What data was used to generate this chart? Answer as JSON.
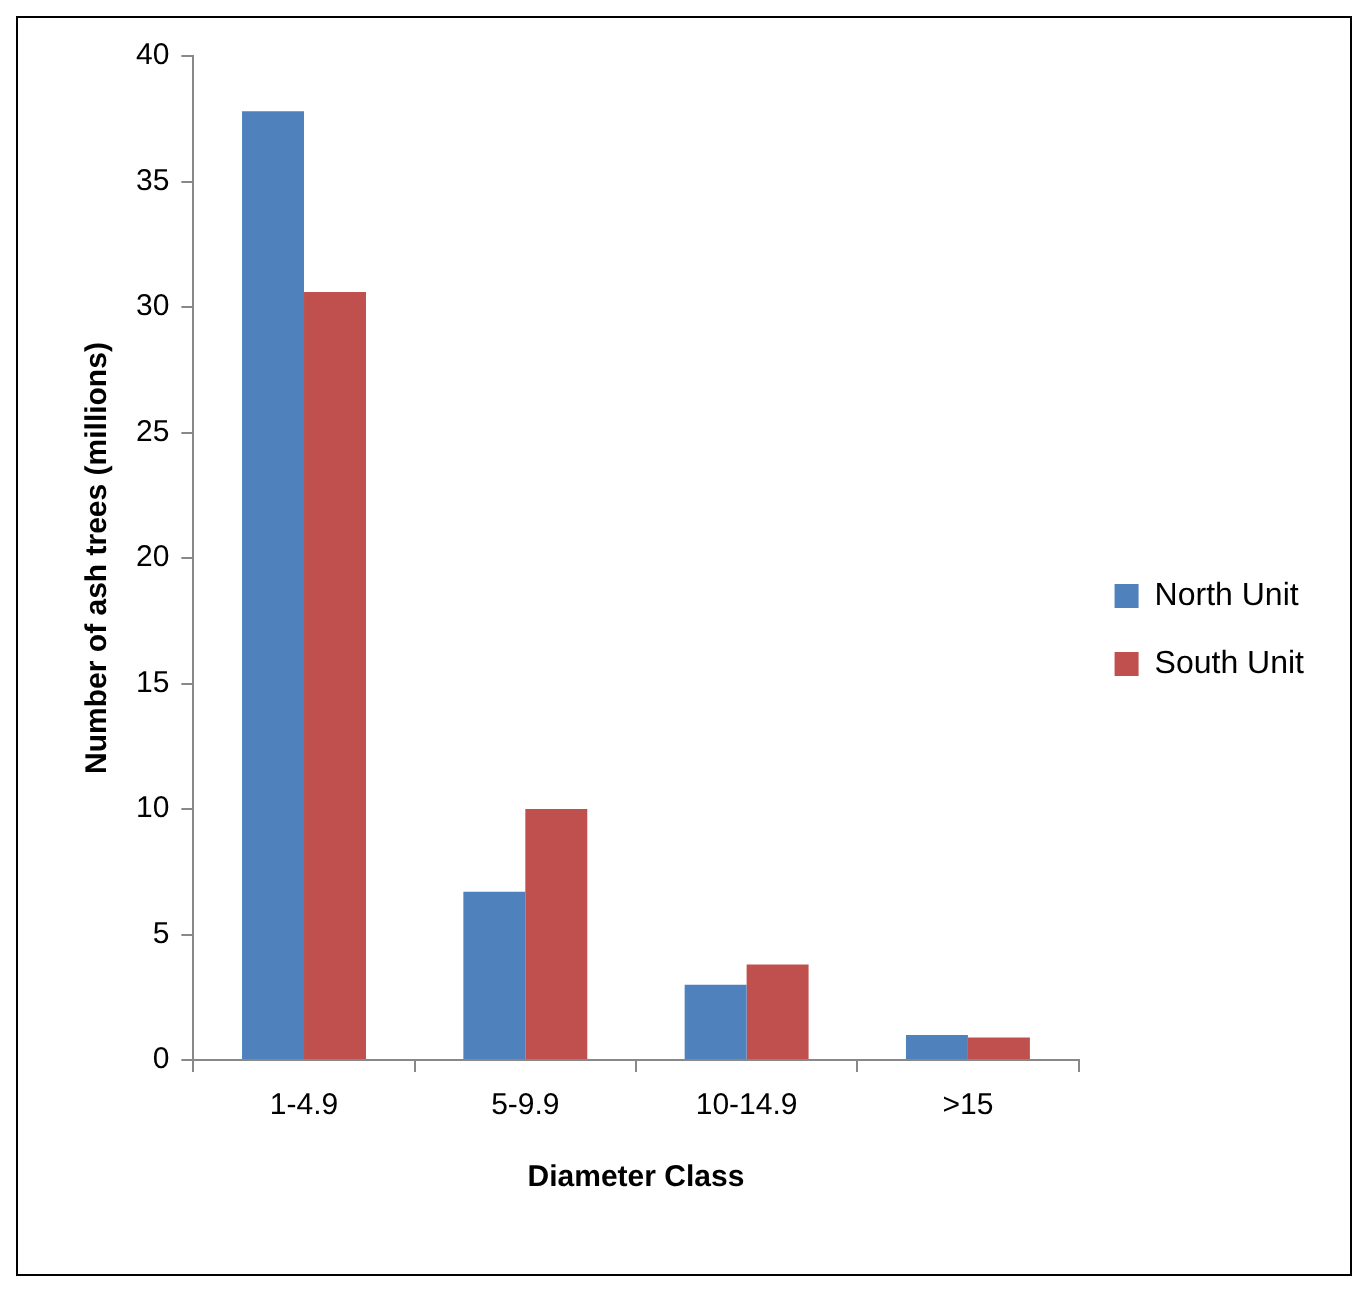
{
  "chart_data": {
    "type": "bar",
    "xlabel": "Diameter Class",
    "ylabel": "Number of ash trees (millions)",
    "categories": [
      "1-4.9",
      "5-9.9",
      "10-14.9",
      ">15"
    ],
    "series": [
      {
        "name": "North Unit",
        "color": "#4f81bd",
        "values": [
          37.8,
          6.7,
          3.0,
          1.0
        ]
      },
      {
        "name": "South Unit",
        "color": "#c0504d",
        "values": [
          30.6,
          10.0,
          3.8,
          0.9
        ]
      }
    ],
    "ylim": [
      0,
      40
    ],
    "yticks": [
      0,
      5,
      10,
      15,
      20,
      25,
      30,
      35,
      40
    ],
    "grid": false,
    "legend": "right"
  }
}
